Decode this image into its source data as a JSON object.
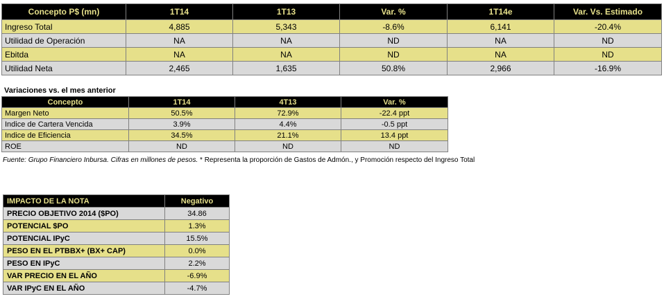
{
  "table1": {
    "headers": [
      "Concepto P$ (mn)",
      "1T14",
      "1T13",
      "Var. %",
      "1T14e",
      "Var. Vs. Estimado"
    ],
    "rows": [
      [
        "Ingreso Total",
        "4,885",
        "5,343",
        "-8.6%",
        "6,141",
        "-20.4%"
      ],
      [
        "Utilidad de Operación",
        "NA",
        "NA",
        "ND",
        "NA",
        "ND"
      ],
      [
        "Ebitda",
        "NA",
        "NA",
        "ND",
        "NA",
        "ND"
      ],
      [
        "Utilidad Neta",
        "2,465",
        "1,635",
        "50.8%",
        "2,966",
        "-16.9%"
      ]
    ]
  },
  "table2": {
    "title": "Variaciones vs. el mes anterior",
    "headers": [
      "Concepto",
      "1T14",
      "4T13",
      "Var. %"
    ],
    "rows": [
      [
        "Margen Neto",
        "50.5%",
        "72.9%",
        "-22.4 ppt"
      ],
      [
        "Indice de Cartera Vencida",
        "3.9%",
        "4.4%",
        "-0.5 ppt"
      ],
      [
        "Indice de Eficiencia",
        "34.5%",
        "21.1%",
        "13.4 ppt"
      ],
      [
        "ROE",
        "ND",
        "ND",
        "ND"
      ]
    ]
  },
  "note": {
    "source": "Fuente: Grupo Financiero Inbursa. Cifras en millones de pesos.",
    "remark": " * Representa la proporción de Gastos de Admón., y Promoción respecto del Ingreso Total"
  },
  "table3": {
    "headers": [
      "IMPACTO DE LA NOTA",
      "Negativo"
    ],
    "rows": [
      [
        "PRECIO OBJETIVO 2014 ($PO)",
        "34.86"
      ],
      [
        "POTENCIAL $PO",
        "1.3%"
      ],
      [
        "POTENCIAL IPyC",
        "15.5%"
      ],
      [
        "PESO EN EL PTBBX+ (BX+ CAP)",
        "0.0%"
      ],
      [
        "PESO EN IPyC",
        "2.2%"
      ],
      [
        "VAR PRECIO EN EL AÑO",
        "-6.9%"
      ],
      [
        "VAR IPyC EN EL AÑO",
        "-4.7%"
      ]
    ]
  },
  "colors": {
    "header_bg": "#000000",
    "header_text": "#e6e08a",
    "row_yellow": "#e6e08a",
    "row_gray": "#d9d9d9"
  }
}
